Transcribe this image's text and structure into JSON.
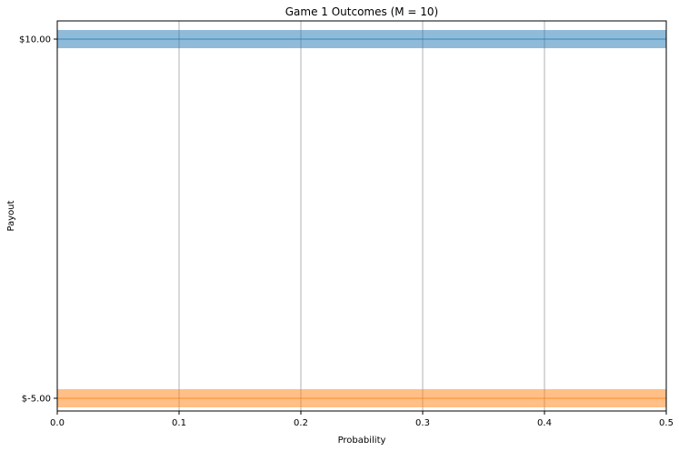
{
  "chart_data": {
    "type": "bar",
    "orientation": "horizontal",
    "title": "Game 1 Outcomes (M = 10)",
    "xlabel": "Probability",
    "ylabel": "Payout",
    "xlim": [
      0.0,
      0.5
    ],
    "x_ticks": [
      "0.0",
      "0.1",
      "0.2",
      "0.3",
      "0.4",
      "0.5"
    ],
    "x_tick_values": [
      0.0,
      0.1,
      0.2,
      0.3,
      0.4,
      0.5
    ],
    "categories": [
      "$10.00",
      "$-5.00"
    ],
    "category_values": [
      10,
      -5
    ],
    "values": [
      0.5,
      0.5
    ],
    "colors": [
      "#1f77b4",
      "#ff7f0e"
    ],
    "bar_opacity": 0.5,
    "grid": "x",
    "legend": "none"
  }
}
